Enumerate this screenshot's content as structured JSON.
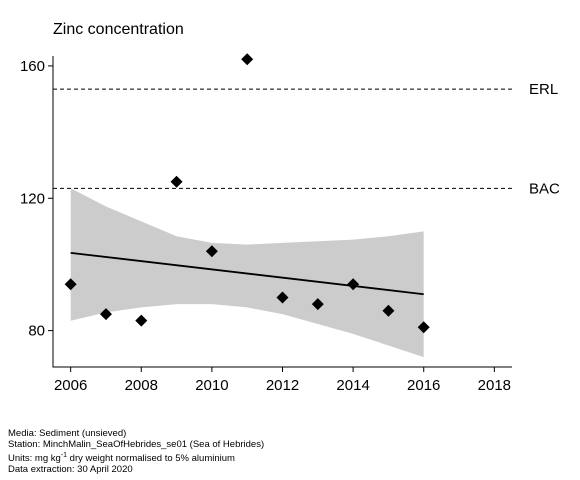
{
  "chart_data": {
    "type": "scatter",
    "title": "Zinc concentration",
    "xlabel": "",
    "ylabel": "",
    "xlim": [
      2005.5,
      2018.5
    ],
    "ylim": [
      69,
      163
    ],
    "x_ticks": [
      2006,
      2008,
      2010,
      2012,
      2014,
      2016,
      2018
    ],
    "y_ticks": [
      80,
      120,
      160
    ],
    "points": [
      {
        "x": 2006,
        "y": 94
      },
      {
        "x": 2007,
        "y": 85
      },
      {
        "x": 2008,
        "y": 83
      },
      {
        "x": 2009,
        "y": 125
      },
      {
        "x": 2010,
        "y": 104
      },
      {
        "x": 2011,
        "y": 162
      },
      {
        "x": 2012,
        "y": 90
      },
      {
        "x": 2013,
        "y": 88
      },
      {
        "x": 2014,
        "y": 94
      },
      {
        "x": 2015,
        "y": 86
      },
      {
        "x": 2016,
        "y": 81
      }
    ],
    "trend": {
      "x": [
        2006,
        2016
      ],
      "y": [
        103.5,
        91
      ]
    },
    "confidence_band": {
      "x": [
        2006,
        2007,
        2008,
        2009,
        2010,
        2011,
        2012,
        2013,
        2014,
        2015,
        2016
      ],
      "upper": [
        123,
        117.5,
        113,
        108.5,
        106.5,
        106,
        106.5,
        107,
        107.5,
        108.5,
        110
      ],
      "lower": [
        83,
        85.5,
        87,
        88,
        88,
        87,
        85,
        82,
        79,
        75.5,
        72
      ]
    },
    "reference_lines": [
      {
        "label": "ERL",
        "y": 153
      },
      {
        "label": "BAC",
        "y": 123
      }
    ],
    "grid": false,
    "legend": "none"
  },
  "footer": {
    "media": "Media: Sediment (unsieved)",
    "station": "Station: MinchMalin_SeaOfHebrides_se01 (Sea of Hebrides)",
    "units_prefix": "Units:  mg kg",
    "units_sup": "-1",
    "units_suffix": " dry weight normalised to 5% aluminium",
    "extraction": "Data extraction: 30 April 2020"
  },
  "colors": {
    "band": "#cccccc",
    "line": "#000000",
    "points": "#000000"
  }
}
